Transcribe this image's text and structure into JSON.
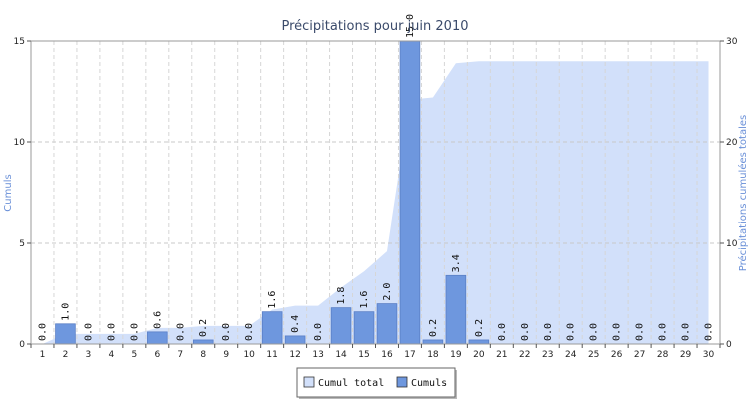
{
  "chart_data": {
    "type": "bar",
    "title": "Précipitations pour juin 2010",
    "xlabel": "",
    "ylabel": "Cumuls",
    "y2label": "Précipitations cumulées totales",
    "categories": [
      "1",
      "2",
      "3",
      "4",
      "5",
      "6",
      "7",
      "8",
      "9",
      "10",
      "11",
      "12",
      "13",
      "14",
      "15",
      "16",
      "17",
      "18",
      "19",
      "20",
      "21",
      "22",
      "23",
      "24",
      "25",
      "26",
      "27",
      "28",
      "29",
      "30"
    ],
    "series": [
      {
        "name": "Cumuls",
        "type": "bar",
        "axis": "left",
        "values": [
          0.0,
          1.0,
          0.0,
          0.0,
          0.0,
          0.6,
          0.0,
          0.2,
          0.0,
          0.0,
          1.6,
          0.4,
          0.0,
          1.8,
          1.6,
          2.0,
          15.0,
          0.2,
          3.4,
          0.2,
          0.0,
          0.0,
          0.0,
          0.0,
          0.0,
          0.0,
          0.0,
          0.0,
          0.0,
          0.0
        ],
        "labels": [
          "0.0",
          "1.0",
          "0.0",
          "0.0",
          "0.0",
          "0.6",
          "0.0",
          "0.2",
          "0.0",
          "0.0",
          "1.6",
          "0.4",
          "0.0",
          "1.8",
          "1.6",
          "2.0",
          "15.0",
          "0.2",
          "3.4",
          "0.2",
          "0.0",
          "0.0",
          "0.0",
          "0.0",
          "0.0",
          "0.0",
          "0.0",
          "0.0",
          "0.0",
          "0.0"
        ],
        "color": "#6e97de"
      },
      {
        "name": "Cumul total",
        "type": "area",
        "axis": "right",
        "values": [
          0.0,
          1.0,
          1.0,
          1.0,
          1.0,
          1.6,
          1.6,
          1.8,
          1.8,
          1.8,
          3.4,
          3.8,
          3.8,
          5.6,
          7.2,
          9.2,
          24.2,
          24.4,
          27.8,
          28.0,
          28.0,
          28.0,
          28.0,
          28.0,
          28.0,
          28.0,
          28.0,
          28.0,
          28.0,
          28.0
        ],
        "color": "#d2e0fa"
      }
    ],
    "y_ticks": [
      "0",
      "5",
      "10",
      "15"
    ],
    "y2_ticks": [
      "0",
      "10",
      "20",
      "30"
    ],
    "ylim": [
      0,
      15
    ],
    "y2lim": [
      0,
      30
    ],
    "grid": true,
    "legend": {
      "position": "bottom-center",
      "items": [
        "Cumul total",
        "Cumuls"
      ]
    }
  }
}
